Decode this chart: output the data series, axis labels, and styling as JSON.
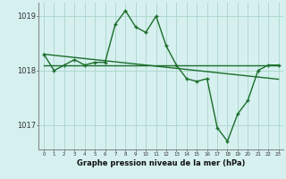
{
  "xlabel": "Graphe pression niveau de la mer (hPa)",
  "background_color": "#d6f0f0",
  "grid_color": "#b0d8d0",
  "line_color": "#1a6e2a",
  "hours": [
    0,
    1,
    2,
    3,
    4,
    5,
    6,
    7,
    8,
    9,
    10,
    11,
    12,
    13,
    14,
    15,
    16,
    17,
    18,
    19,
    20,
    21,
    22,
    23
  ],
  "series_zigzag": [
    1018.3,
    1018.0,
    1018.1,
    1018.2,
    1018.1,
    1018.15,
    1018.15,
    1018.85,
    1019.1,
    1018.8,
    1018.7,
    1019.0,
    1018.45,
    1018.1,
    1017.85,
    1017.8,
    1017.85,
    1016.95,
    1016.7,
    1017.2,
    1017.45,
    1018.0,
    1018.1,
    1018.1
  ],
  "series_flat": [
    1018.1,
    1018.1,
    1018.1,
    1018.1,
    1018.1,
    1018.1,
    1018.1,
    1018.1,
    1018.1,
    1018.1,
    1018.1,
    1018.1,
    1018.1,
    1018.1,
    1018.1,
    1018.1,
    1018.1,
    1018.1,
    1018.1,
    1018.1,
    1018.1,
    1018.1,
    1018.1,
    1018.1
  ],
  "series_diagonal": [
    1018.3,
    1018.28,
    1018.26,
    1018.24,
    1018.22,
    1018.2,
    1018.18,
    1018.16,
    1018.14,
    1018.12,
    1018.1,
    1018.08,
    1018.06,
    1018.04,
    1018.02,
    1018.0,
    1017.98,
    1017.96,
    1017.94,
    1017.92,
    1017.9,
    1017.88,
    1017.86,
    1017.84
  ],
  "ylim": [
    1016.55,
    1019.25
  ],
  "yticks": [
    1017,
    1018,
    1019
  ],
  "xticks": [
    0,
    1,
    2,
    3,
    4,
    5,
    6,
    7,
    8,
    9,
    10,
    11,
    12,
    13,
    14,
    15,
    16,
    17,
    18,
    19,
    20,
    21,
    22,
    23
  ]
}
